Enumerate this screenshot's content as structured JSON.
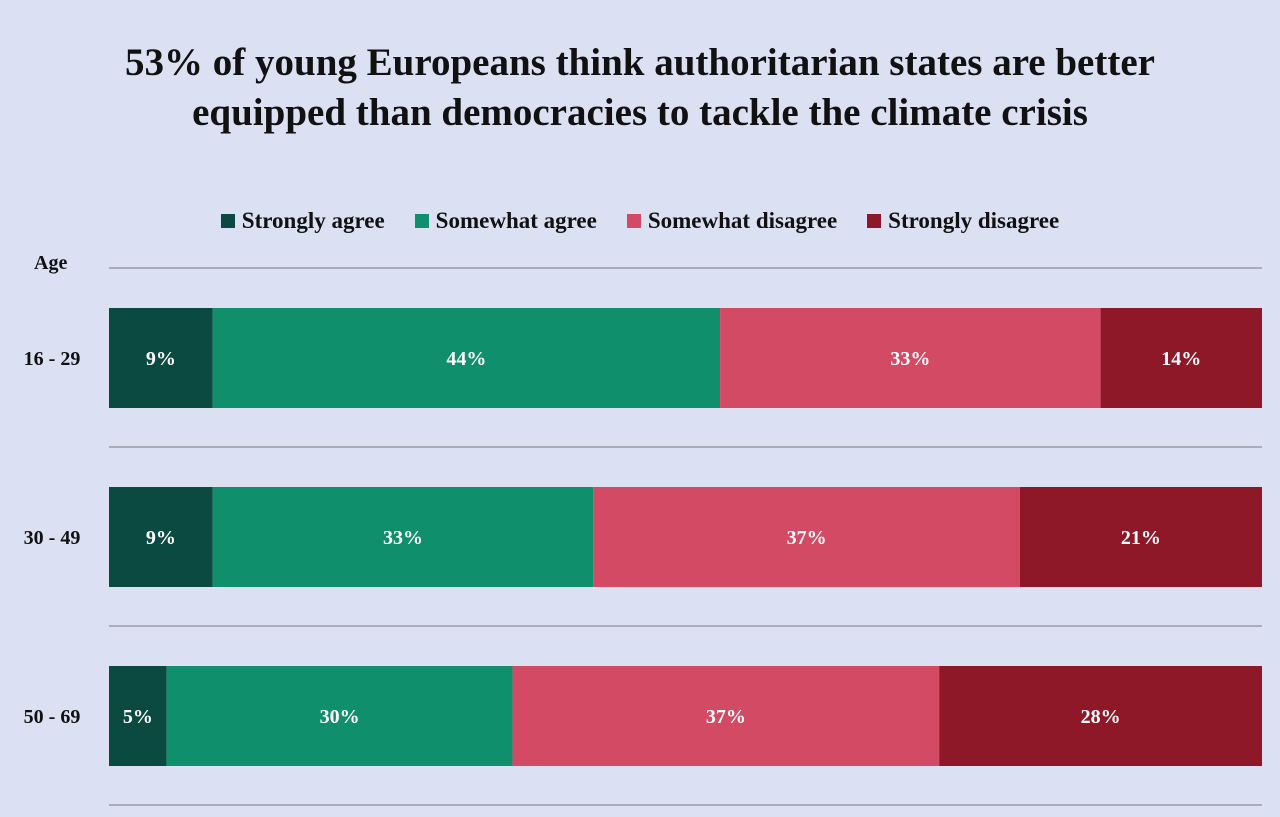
{
  "chart_data": {
    "type": "bar",
    "orientation": "horizontal",
    "stacked": true,
    "title_lines": [
      "53% of young Europeans think authoritarian states are better",
      "equipped than democracies to tackle the climate crisis"
    ],
    "ylabel": "Age",
    "categories": [
      "16 - 29",
      "30 - 49",
      "50 - 69"
    ],
    "xlim": [
      0,
      100
    ],
    "legend_position": "top",
    "series": [
      {
        "name": "Strongly agree",
        "color": "#0b4a40",
        "values": [
          9,
          9,
          5
        ],
        "labels": [
          "9%",
          "9%",
          "5%"
        ]
      },
      {
        "name": "Somewhat agree",
        "color": "#0f8f6c",
        "values": [
          44,
          33,
          30
        ],
        "labels": [
          "44%",
          "33%",
          "30%"
        ]
      },
      {
        "name": "Somewhat disagree",
        "color": "#d24a63",
        "values": [
          33,
          37,
          37
        ],
        "labels": [
          "33%",
          "37%",
          "37%"
        ]
      },
      {
        "name": "Strongly disagree",
        "color": "#8e1828",
        "values": [
          14,
          21,
          28
        ],
        "labels": [
          "14%",
          "21%",
          "28%"
        ]
      }
    ]
  }
}
